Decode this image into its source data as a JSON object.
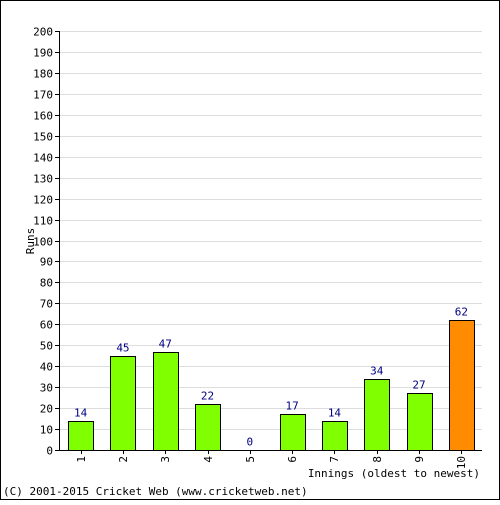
{
  "chart_data": {
    "type": "bar",
    "categories": [
      "1",
      "2",
      "3",
      "4",
      "5",
      "6",
      "7",
      "8",
      "9",
      "10"
    ],
    "values": [
      14,
      45,
      47,
      22,
      0,
      17,
      14,
      34,
      27,
      62
    ],
    "data_labels": [
      "14",
      "45",
      "47",
      "22",
      "0",
      "17",
      "14",
      "34",
      "27",
      "62"
    ],
    "title": "",
    "xlabel": "Innings (oldest to newest)",
    "ylabel": "Runs",
    "ylim": [
      0,
      200
    ],
    "ytick_step": 10,
    "grid": true,
    "legend": "none",
    "colors": {
      "bar": "#80ff00",
      "highlight_bar": "#ff8c00",
      "highlight_index": 9,
      "bar_edge": "#000000",
      "data_label": "#000080",
      "grid": "#dddddd",
      "axis": "#000000"
    }
  },
  "footer": {
    "copyright": "(C) 2001-2015 Cricket Web (www.cricketweb.net)"
  }
}
